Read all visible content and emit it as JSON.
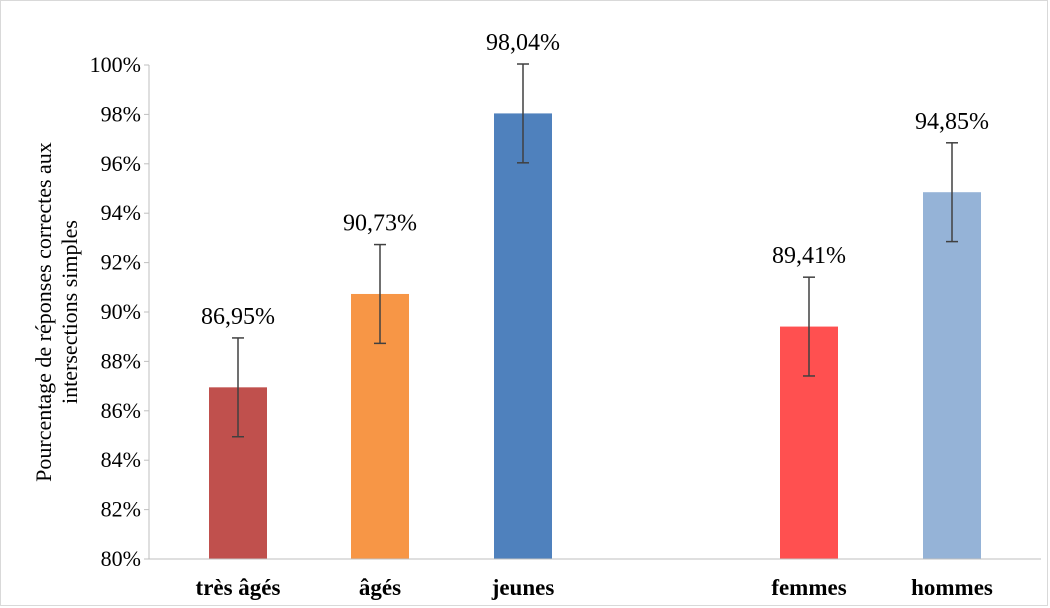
{
  "chart_data": {
    "type": "bar",
    "title": "",
    "xlabel": "",
    "ylabel_lines": [
      "Pourcentage de réponses correctes aux",
      "intersections simples"
    ],
    "ylim": [
      80,
      100
    ],
    "y_ticks": [
      80,
      82,
      84,
      86,
      88,
      90,
      92,
      94,
      96,
      98,
      100
    ],
    "y_tick_labels": [
      "80%",
      "82%",
      "84%",
      "86%",
      "88%",
      "90%",
      "92%",
      "94%",
      "96%",
      "98%",
      "100%"
    ],
    "grid": false,
    "legend": "none",
    "categories": [
      "très âgés",
      "âgés",
      "jeunes",
      "",
      "femmes",
      "hommes"
    ],
    "values": [
      86.95,
      90.73,
      98.04,
      null,
      89.41,
      94.85
    ],
    "value_labels": [
      "86,95%",
      "90,73%",
      "98,04%",
      "",
      "89,41%",
      "94,85%"
    ],
    "error_bars": [
      2.0,
      2.0,
      2.0,
      null,
      2.0,
      2.0
    ],
    "colors": [
      "#c0504d",
      "#f79646",
      "#4f81bd",
      "",
      "#ff5050",
      "#95b3d7"
    ]
  }
}
